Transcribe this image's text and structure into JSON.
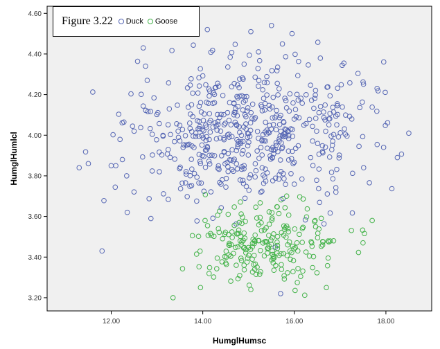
{
  "chart_data": {
    "type": "scatter",
    "title": "Figure 3.22",
    "xlabel": "HumglHumsc",
    "ylabel": "HumglHumlcl",
    "xlim": [
      10.6,
      19.0
    ],
    "ylim": [
      3.135,
      4.635
    ],
    "x_ticks": [
      "12.00",
      "14.00",
      "16.00",
      "18.00"
    ],
    "y_ticks": [
      "3.20",
      "3.40",
      "3.60",
      "3.80",
      "4.00",
      "4.20",
      "4.40",
      "4.60"
    ],
    "grid": false,
    "legend_placement": "top-left",
    "series": [
      {
        "name": "Duck",
        "color": "#5566b4",
        "n_points": 560,
        "center": {
          "x": 15.0,
          "y": 4.02
        },
        "spread": {
          "x": 1.35,
          "y": 0.17
        },
        "range": {
          "x": [
            11.3,
            18.5
          ],
          "y": [
            3.22,
            4.54
          ]
        },
        "points": [
          [
            11.3,
            3.84
          ],
          [
            11.5,
            3.86
          ],
          [
            11.8,
            3.43
          ],
          [
            12.0,
            3.85
          ],
          [
            12.1,
            3.85
          ],
          [
            12.35,
            3.62
          ],
          [
            12.5,
            4.02
          ],
          [
            12.7,
            4.43
          ],
          [
            12.75,
            4.34
          ],
          [
            17.95,
            3.94
          ],
          [
            18.25,
            3.89
          ],
          [
            18.5,
            4.01
          ],
          [
            15.5,
            4.54
          ],
          [
            15.05,
            4.51
          ],
          [
            14.1,
            4.52
          ],
          [
            15.95,
            4.5
          ],
          [
            15.7,
            3.22
          ]
        ]
      },
      {
        "name": "Goose",
        "color": "#44b34a",
        "n_points": 230,
        "center": {
          "x": 15.4,
          "y": 3.46
        },
        "spread": {
          "x": 0.8,
          "y": 0.09
        },
        "range": {
          "x": [
            13.35,
            17.7
          ],
          "y": [
            3.2,
            3.72
          ]
        },
        "points": [
          [
            13.35,
            3.2
          ],
          [
            13.95,
            3.25
          ],
          [
            17.7,
            3.58
          ],
          [
            17.5,
            3.47
          ],
          [
            15.05,
            3.24
          ],
          [
            16.7,
            3.25
          ],
          [
            14.05,
            3.58
          ]
        ]
      }
    ]
  }
}
